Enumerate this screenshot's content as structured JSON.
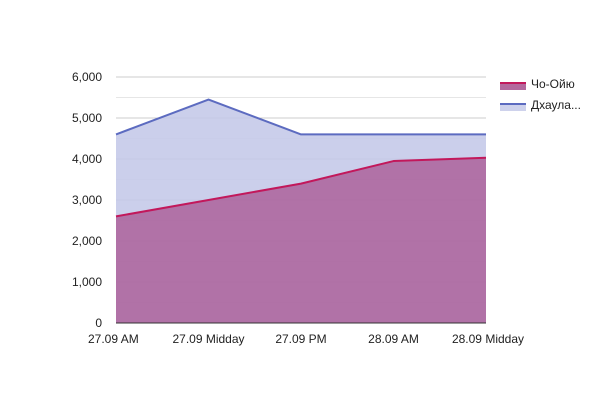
{
  "chart_data": {
    "type": "area",
    "stacked": false,
    "categories": [
      "27.09 AM",
      "27.09 Midday",
      "27.09 PM",
      "28.09 AM",
      "28.09 Midday"
    ],
    "series": [
      {
        "name": "Чо-Ойю",
        "values": [
          2600,
          3000,
          3400,
          3950,
          4030
        ],
        "color": "#c2185b",
        "fill": "#a64d8c"
      },
      {
        "name": "Дхаула...",
        "values": [
          4600,
          5450,
          4600,
          4600,
          4600
        ],
        "color": "#5c6bc0",
        "fill": "#c5cae9"
      }
    ],
    "ylim": [
      0,
      6000
    ],
    "yticks": [
      "0",
      "1,000",
      "2,000",
      "3,000",
      "4,000",
      "5,000",
      "6,000"
    ],
    "grid": true,
    "legend": "right"
  }
}
